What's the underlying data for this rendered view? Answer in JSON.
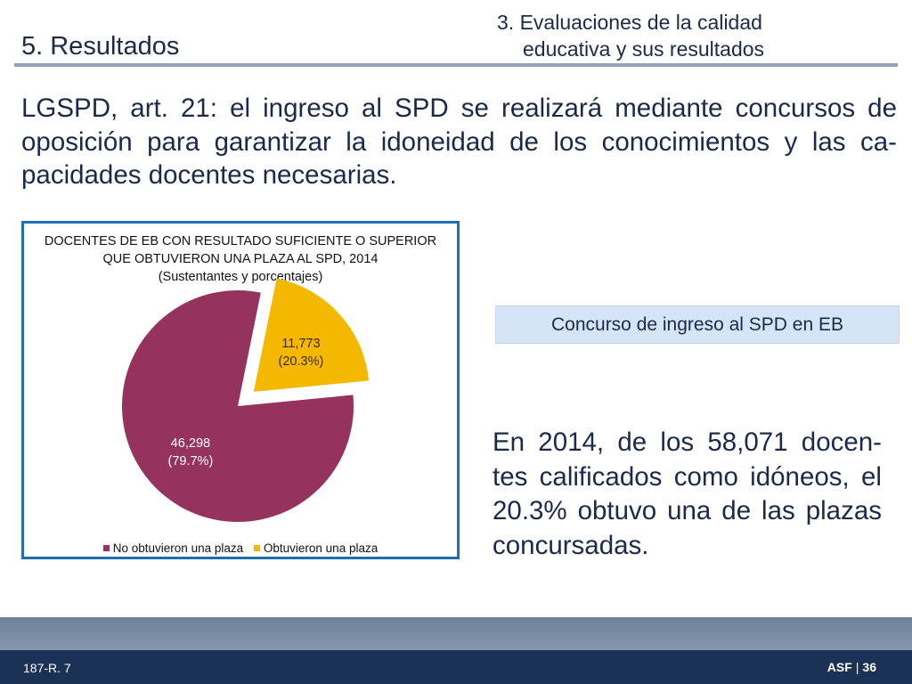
{
  "header": {
    "title": "5. Resultados",
    "section_line1": "3. Evaluaciones de la calidad",
    "section_line2": "educativa y sus resultados"
  },
  "intro_text": "LGSPD, art. 21: el ingreso al SPD se realizará mediante concursos de oposición para garantizar la idoneidad de los conocimientos y las ca-pacidades docentes necesarias.",
  "chart_data": {
    "type": "pie",
    "title_line1": "DOCENTES DE EB CON RESULTADO SUFICIENTE O SUPERIOR",
    "title_line2": "QUE OBTUVIERON UNA PLAZA AL SPD, 2014",
    "subtitle": "(Sustentantes y porcentajes)",
    "slices": [
      {
        "label": "Obtuvieron una plaza",
        "value": 11773,
        "value_label": "11,773",
        "percent_label": "(20.3%)",
        "color": "#f5b800",
        "exploded": true
      },
      {
        "label": "No obtuvieron una plaza",
        "value": 46298,
        "value_label": "46,298",
        "percent_label": "(79.7%)",
        "color": "#96325e",
        "exploded": false
      }
    ],
    "legend": [
      "No obtuvieron una plaza",
      "Obtuvieron una plaza"
    ],
    "legend_position": "bottom"
  },
  "callout_label": "Concurso de ingreso al SPD en EB",
  "summary_text": "En 2014, de los 58,071 docen-tes calificados como idóneos, el 20.3% obtuvo una de las plazas concursadas.",
  "footer": {
    "code": "187-R. 7",
    "org": "ASF",
    "separator": "|",
    "page": "36"
  },
  "colors": {
    "frame_border": "#1f6fb0",
    "callout_bg": "#d6e4f7",
    "footer_bar": "#1b3256",
    "header_rule": "#8fa3bd"
  }
}
